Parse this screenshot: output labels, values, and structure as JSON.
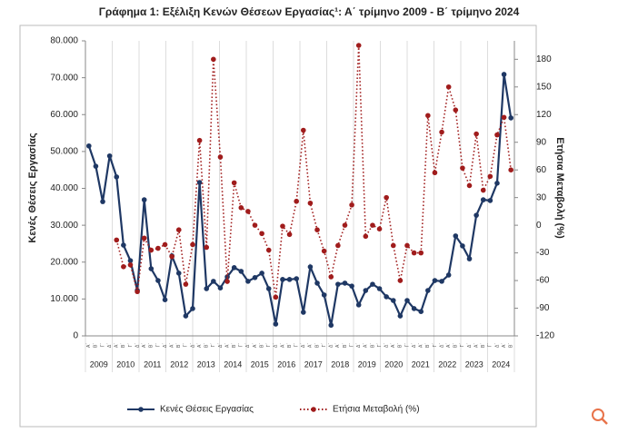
{
  "chart_data": {
    "type": "line",
    "title": "Γράφημα 1: Εξέλιξη Κενών Θέσεων Εργασίας¹: Α΄ τρίμηνο 2009 - Β΄ τρίμηνο 2024",
    "ylabel": "Κενές Θέσεις Εργασίας",
    "y2label": "Ετήσια Μεταβολή (%)",
    "years": [
      "2009",
      "2010",
      "2011",
      "2012",
      "2013",
      "2014",
      "2015",
      "2016",
      "2017",
      "2018",
      "2019",
      "2020",
      "2021",
      "2022",
      "2023",
      "2024"
    ],
    "categories": [
      "Α΄",
      "Β΄",
      "Γ΄",
      "Δ΄",
      "Α΄",
      "Β΄",
      "Γ΄",
      "Δ΄",
      "Α΄",
      "Β΄",
      "Γ΄",
      "Δ΄",
      "Α΄",
      "Β΄",
      "Γ΄",
      "Δ΄",
      "Α΄",
      "Β΄",
      "Γ΄",
      "Δ΄",
      "Α΄",
      "Β΄",
      "Γ΄",
      "Δ΄",
      "Α΄",
      "Β΄",
      "Γ΄",
      "Δ΄",
      "Α΄",
      "Β΄",
      "Γ΄",
      "Δ΄",
      "Α΄",
      "Β΄",
      "Γ΄",
      "Δ΄",
      "Α΄",
      "Β΄",
      "Γ΄",
      "Δ΄",
      "Α΄",
      "Β΄",
      "Γ΄",
      "Δ΄",
      "Α΄",
      "Β΄",
      "Γ΄",
      "Δ΄",
      "Α΄",
      "Β΄",
      "Γ΄",
      "Δ΄",
      "Α΄",
      "Β΄",
      "Γ΄",
      "Δ΄",
      "Α΄",
      "Β΄",
      "Γ΄",
      "Δ΄",
      "Α΄",
      "Β΄"
    ],
    "series": [
      {
        "name": "Κενές Θέσεις Εργασίας",
        "color": "#1f3864",
        "style": "solid",
        "values": [
          51500,
          46000,
          36400,
          48800,
          43100,
          24600,
          20400,
          12300,
          36900,
          18200,
          15000,
          9800,
          21700,
          17000,
          5400,
          7400,
          41600,
          12800,
          14800,
          13000,
          16000,
          18500,
          17500,
          14800,
          15800,
          17000,
          12800,
          3200,
          15300,
          15300,
          15500,
          6400,
          18700,
          14300,
          11100,
          2900,
          14000,
          14300,
          13500,
          8400,
          12300,
          14000,
          12800,
          10600,
          9600,
          5400,
          9600,
          7400,
          6600,
          12300,
          15000,
          14800,
          16500,
          27100,
          24400,
          20900,
          32700,
          36900,
          36700,
          41400,
          70900,
          59100
        ]
      },
      {
        "name": "Ετήσια Μεταβολή (%)",
        "color": "#a01c1c",
        "style": "dotted",
        "axis": "y2",
        "values": [
          null,
          null,
          null,
          null,
          -16,
          -45,
          -43,
          -72,
          -14,
          -27,
          -25,
          -21,
          -34,
          -5,
          -64,
          -21,
          92,
          -24,
          180,
          74,
          -61,
          46,
          19,
          15,
          0,
          -9,
          -27,
          -78,
          -1,
          -10,
          26,
          103,
          24,
          -5,
          -28,
          -56,
          -22,
          0,
          22,
          195,
          -12,
          0,
          -4,
          30,
          -22,
          -60,
          -22,
          -30,
          -30,
          119,
          57,
          101,
          150,
          125,
          62,
          43,
          99,
          38,
          53,
          98,
          117,
          60
        ]
      }
    ],
    "ylim": [
      0,
      80000
    ],
    "yticks": [
      0,
      {
        "value": 10000,
        "label": "10.000"
      },
      {
        "value": 20000,
        "label": "20.000"
      },
      {
        "value": 30000,
        "label": "30.000"
      },
      {
        "value": 40000,
        "label": "40.000"
      },
      {
        "value": 50000,
        "label": "50.000"
      },
      {
        "value": 60000,
        "label": "60.000"
      },
      {
        "value": 70000,
        "label": "70.000"
      },
      {
        "value": 80000,
        "label": "80.000"
      }
    ],
    "y2lim": [
      -120,
      200
    ],
    "y2ticks": [
      -120,
      -90,
      -60,
      -30,
      0,
      30,
      60,
      90,
      120,
      150,
      180
    ],
    "legend": "bottom"
  }
}
